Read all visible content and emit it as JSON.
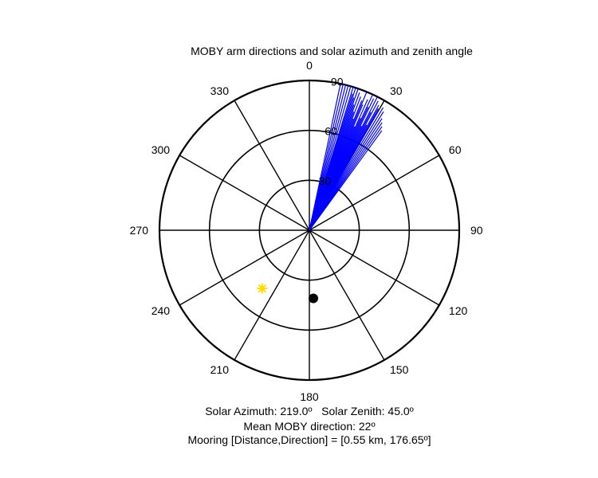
{
  "chart_data": {
    "type": "polar",
    "title": "MOBY arm directions and solar azimuth and zenith angle",
    "angle_zero": "top",
    "angle_direction": "clockwise",
    "radial_range": [
      0,
      90
    ],
    "radial_ticks": [
      "90",
      "60",
      "30"
    ],
    "angle_ticks": [
      "0",
      "30",
      "60",
      "90",
      "120",
      "150",
      "180",
      "210",
      "240",
      "270",
      "300",
      "330"
    ],
    "series": [
      {
        "kind": "rays",
        "color": "#0000ff",
        "angles": [
          12,
          13,
          14,
          15,
          16,
          17,
          17.5,
          18,
          18.5,
          19,
          19.5,
          20,
          20.5,
          21,
          21.5,
          22,
          22.5,
          23,
          23.5,
          24,
          24.5,
          25,
          25.5,
          26,
          26.5,
          27,
          27.5,
          28,
          28.5,
          29,
          29.5,
          30,
          31,
          32,
          33,
          34,
          35,
          36
        ],
        "lengths": [
          90,
          90,
          90,
          90,
          90,
          90,
          86,
          90,
          84,
          90,
          80,
          88,
          76,
          86,
          72,
          84,
          90,
          82,
          68,
          86,
          74,
          90,
          82,
          88,
          70,
          90,
          80,
          88,
          72,
          86,
          84,
          82,
          86,
          84,
          80,
          78,
          76,
          74
        ]
      },
      {
        "kind": "marker",
        "label": "Solar position",
        "color": "#ffdd00",
        "azimuth": 219,
        "zenith": 45
      },
      {
        "kind": "marker",
        "label": "Mooring",
        "color": "#000000",
        "azimuth": 176.65,
        "zenith": 41
      }
    ]
  },
  "info": {
    "solar_line": "Solar Azimuth: 219.0º   Solar Zenith: 45.0º",
    "mean_line": "Mean MOBY direction: 22º",
    "mooring_line": "Mooring [Distance,Direction] = [0.55 km, 176.65º]"
  }
}
